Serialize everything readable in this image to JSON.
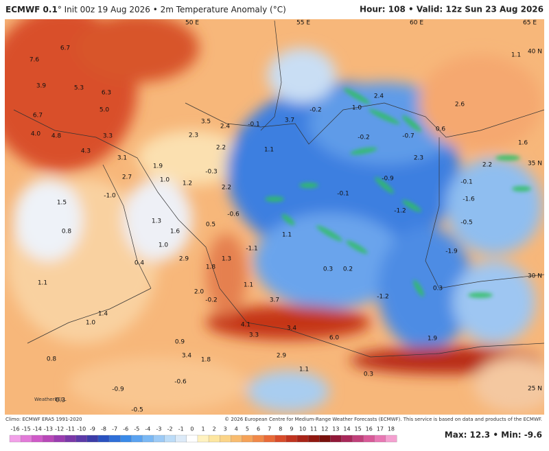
{
  "header": {
    "left_bold": "ECMWF 0.1",
    "left_rest": "° Init 00z 19 Aug 2026 • 2m Temperature Anomaly (°C)",
    "right": "Hour: 108 • Valid: 12z Sun 23 Aug 2026"
  },
  "grid_labels": [
    "50 E",
    "55 E",
    "60 E",
    "65 E",
    "40 N",
    "35 N",
    "30 N",
    "25 N"
  ],
  "map_values": [
    "7.6",
    "6.7",
    "3.9",
    "5.3",
    "6.3",
    "5.0",
    "6.7",
    "4.0",
    "4.8",
    "3.3",
    "4.3",
    "3.1",
    "2.7",
    "1.9",
    "1.0",
    "1.2",
    "-1.0",
    "1.5",
    "0.8",
    "1.3",
    "1.6",
    "0.5",
    "-0.6",
    "1.0",
    "2.9",
    "0.4",
    "1.1",
    "1.8",
    "1.3",
    "-1.1",
    "1.1",
    "1.1",
    "2.0",
    "-0.2",
    "3.7",
    "1.4",
    "1.0",
    "4.1",
    "3.4",
    "3.3",
    "0.9",
    "3.4",
    "1.8",
    "2.9",
    "1.1",
    "0.8",
    "-0.6",
    "-0.9",
    "0.3",
    "-0.5",
    "2.3",
    "2.2",
    "2.4",
    "3.5",
    "-0.1",
    "3.7",
    "1.1",
    "-0.3",
    "2.2",
    "-0.2",
    "1.0",
    "2.4",
    "-0.2",
    "-0.7",
    "2.3",
    "-0.9",
    "-0.1",
    "-1.2",
    "0.3",
    "0.2",
    "-1.2",
    "0.3",
    "1.9",
    "0.6",
    "2.6",
    "1.1",
    "1.6",
    "2.2",
    "-0.1",
    "-1.6",
    "-0.5",
    "-1.9",
    "6.0",
    "0.3"
  ],
  "footer": {
    "climo": "Climo: ECMWF ERA5 1991-2020",
    "copyright": "© 2026 European Centre for Medium-Range Weather Forecasts (ECMWF). This service is based on data and products of the ECMWF.",
    "logo": "WeatherBELL",
    "maxmin": "Max: 12.3 • Min: -9.6"
  },
  "colorbar": {
    "ticks": [
      "-16",
      "-15",
      "-14",
      "-13",
      "-12",
      "-11",
      "-10",
      "-9",
      "-8",
      "-7",
      "-6",
      "-5",
      "-4",
      "-3",
      "-2",
      "-1",
      "0",
      "1",
      "2",
      "3",
      "4",
      "5",
      "6",
      "7",
      "8",
      "9",
      "10",
      "11",
      "12",
      "13",
      "14",
      "15",
      "16",
      "17",
      "18"
    ]
  }
}
